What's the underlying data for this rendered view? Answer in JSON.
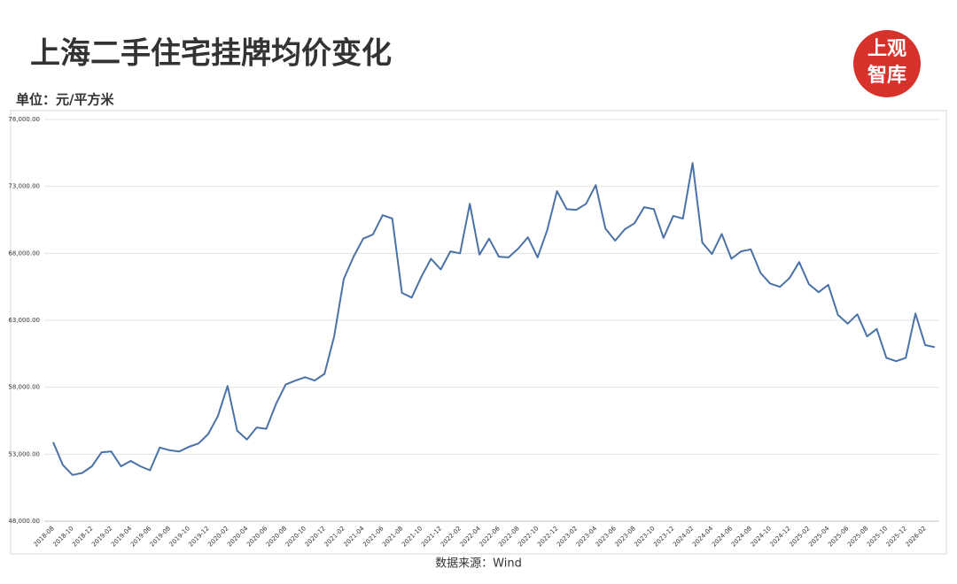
{
  "chart_data": {
    "type": "line",
    "title": "上海二手住宅挂牌均价变化",
    "unit_label": "单位：元/平方米",
    "source": "数据来源：Wind",
    "logo": [
      "上观",
      "智库"
    ],
    "categories": [
      "2018-08",
      null,
      "2018-10",
      null,
      "2018-12",
      null,
      "2019-02",
      null,
      "2019-04",
      null,
      "2019-06",
      null,
      "2019-08",
      null,
      "2019-10",
      null,
      "2019-12",
      null,
      "2020-02",
      null,
      "2020-04",
      null,
      "2020-06",
      null,
      "2020-08",
      null,
      "2020-10",
      null,
      "2020-12",
      null,
      "2021-02",
      null,
      "2021-04",
      null,
      "2021-06",
      null,
      "2021-08",
      null,
      "2021-10",
      null,
      "2021-12",
      null,
      "2022-02",
      null,
      "2022-04",
      null,
      "2022-06",
      null,
      "2022-08",
      null,
      "2022-10",
      null,
      "2022-12",
      null,
      "2023-02",
      null,
      "2023-04",
      null,
      "2023-06",
      null,
      "2023-08",
      null,
      "2023-10",
      null,
      "2023-12",
      null,
      "2024-02",
      null,
      "2024-04",
      null,
      "2024-06",
      null,
      "2024-08",
      null,
      "2024-10",
      null,
      "2024-12",
      null,
      "2025-02",
      null,
      "2025-04",
      null,
      "2025-06",
      null,
      "2025-08",
      null,
      "2025-10",
      null,
      "2025-12",
      null,
      "2026-02",
      null
    ],
    "series": [
      {
        "name": "挂牌均价",
        "color": "#4a72a6",
        "values": [
          53900,
          52200,
          51450,
          51600,
          52100,
          53150,
          53200,
          52100,
          52500,
          52100,
          51800,
          53500,
          53300,
          53200,
          53550,
          53800,
          54500,
          55850,
          58100,
          54750,
          54100,
          55000,
          54900,
          56750,
          58200,
          58500,
          58750,
          58500,
          59000,
          61800,
          66100,
          67750,
          69100,
          69400,
          70850,
          70600,
          65050,
          64700,
          66250,
          67600,
          66800,
          68150,
          68000,
          71700,
          67900,
          69100,
          67750,
          67700,
          68350,
          69200,
          67700,
          69750,
          72650,
          71300,
          71250,
          71700,
          73100,
          69850,
          68950,
          69800,
          70250,
          71450,
          71300,
          69150,
          70800,
          70600,
          74750,
          68800,
          67950,
          69450,
          67600,
          68150,
          68300,
          66550,
          65750,
          65500,
          66150,
          67350,
          65700,
          65100,
          65650,
          63400,
          62750,
          63450,
          61800,
          62350,
          60200,
          59950,
          60200,
          63500,
          61150,
          61000
        ]
      }
    ],
    "ylim": [
      48000,
      78000
    ],
    "yticks": [
      {
        "value": 48000,
        "label": "48,000.00"
      },
      {
        "value": 53000,
        "label": "53,000.00"
      },
      {
        "value": 58000,
        "label": "58,000.00"
      },
      {
        "value": 63000,
        "label": "63,000.00"
      },
      {
        "value": 68000,
        "label": "68,000.00"
      },
      {
        "value": 73000,
        "label": "73,000.00"
      },
      {
        "value": 78000,
        "label": "78,000.00"
      }
    ],
    "grid": true
  }
}
